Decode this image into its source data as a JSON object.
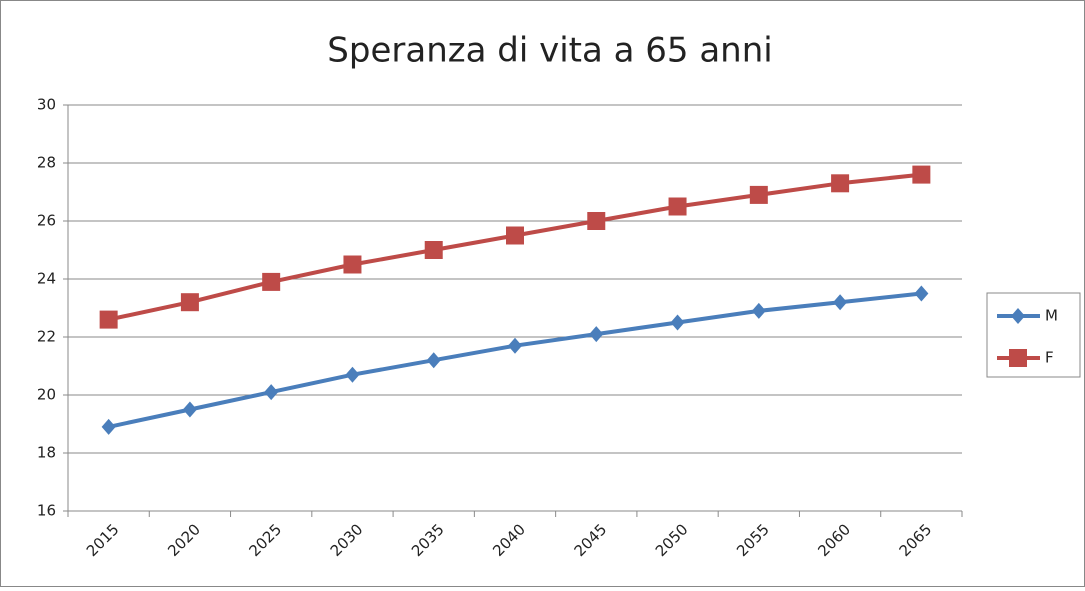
{
  "chart_data": {
    "type": "line",
    "title": "Speranza di vita a 65 anni",
    "categories": [
      "2015",
      "2020",
      "2025",
      "2030",
      "2035",
      "2040",
      "2045",
      "2050",
      "2055",
      "2060",
      "2065"
    ],
    "series": [
      {
        "name": "M",
        "color": "#4a7ebb",
        "marker": "diamond",
        "values": [
          18.9,
          19.5,
          20.1,
          20.7,
          21.2,
          21.7,
          22.1,
          22.5,
          22.9,
          23.2,
          23.5
        ]
      },
      {
        "name": "F",
        "color": "#be4b48",
        "marker": "square",
        "values": [
          22.6,
          23.2,
          23.9,
          24.5,
          25.0,
          25.5,
          26.0,
          26.5,
          26.9,
          27.3,
          27.6
        ]
      }
    ],
    "ylim": [
      16,
      30
    ],
    "yticks": [
      16,
      18,
      20,
      22,
      24,
      26,
      28,
      30
    ],
    "grid": true,
    "legend": "right"
  }
}
